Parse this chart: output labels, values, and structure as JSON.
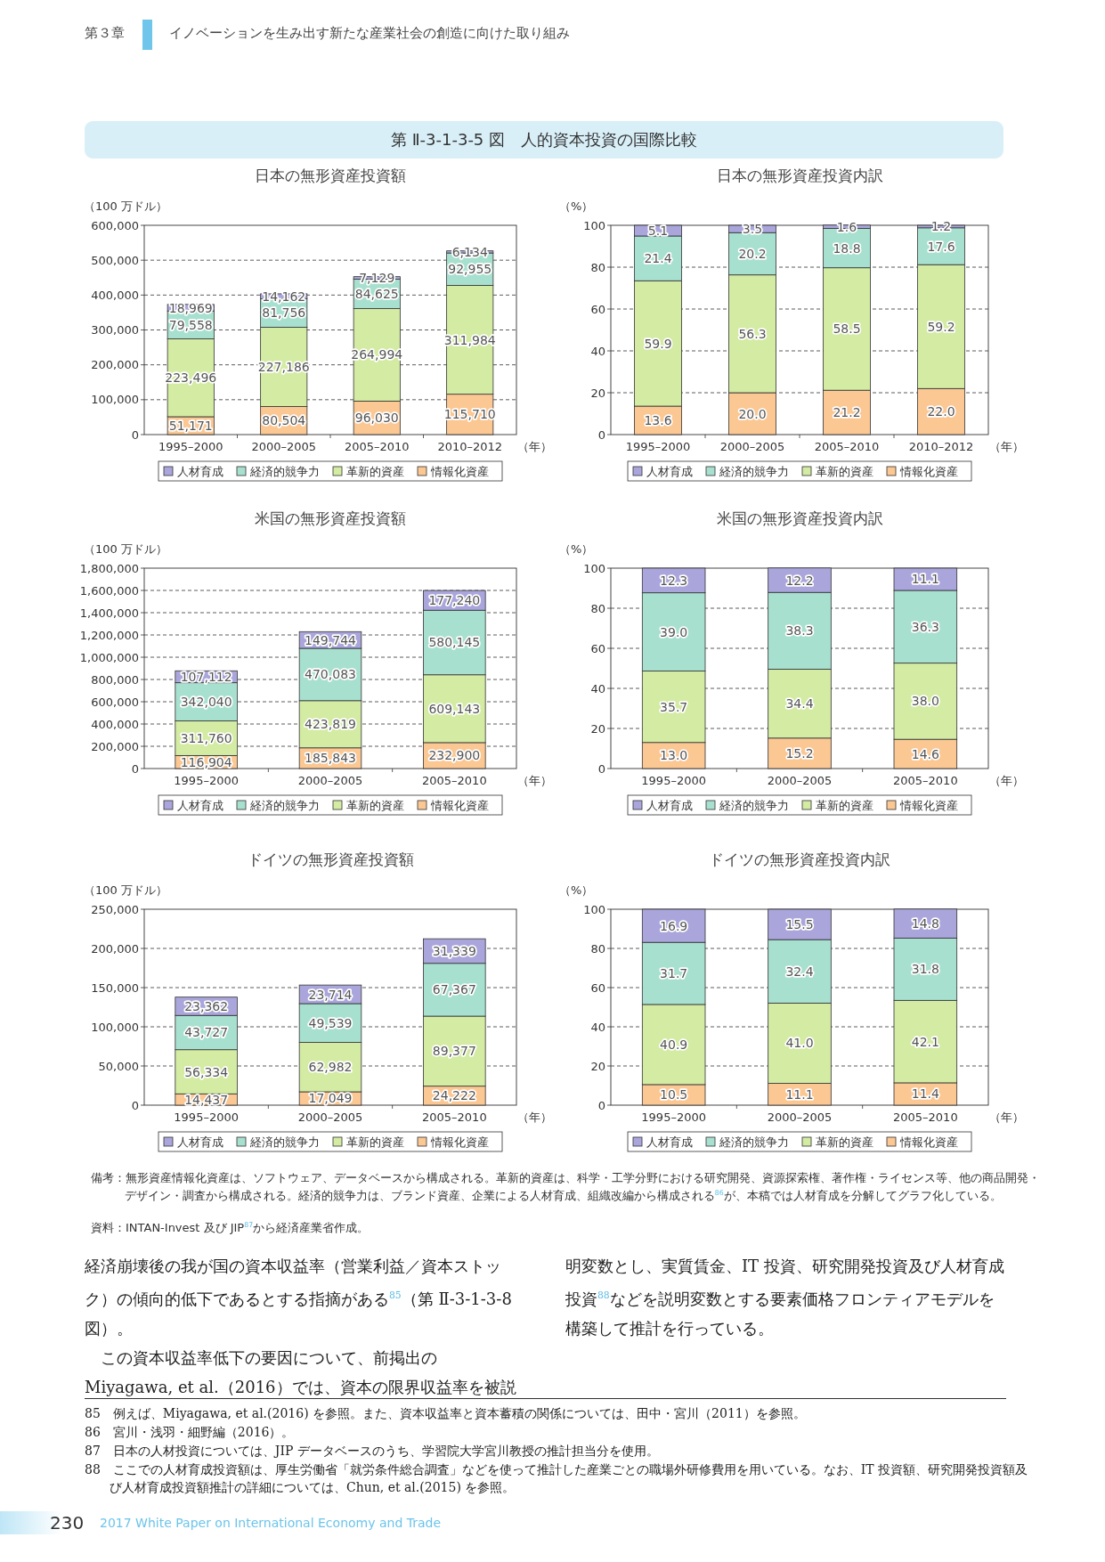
{
  "chart_data": [
    {
      "type": "other",
      "title": "第 Ⅱ-3-1-3-5 図　人的資本投資の国際比較",
      "annotations": [
        "第３章",
        "イノベーションを生み出す新たな産業社会の創造に向けた取り組み"
      ]
    },
    {
      "type": "bar",
      "stacked": true,
      "title": "日本の無形資産投資額",
      "ylabel": "（100 万ドル）",
      "xlabel": "（年）",
      "categories": [
        "1995–2000",
        "2000–2005",
        "2005–2010",
        "2010–2012"
      ],
      "ylim": [
        0,
        600000
      ],
      "yticks": [
        0,
        {
          "value": 100000,
          "label": "100,000"
        },
        {
          "value": 200000,
          "label": "200,000"
        },
        {
          "value": 300000,
          "label": "300,000"
        },
        {
          "value": 400000,
          "label": "400,000"
        },
        {
          "value": 500000,
          "label": "500,000"
        },
        {
          "value": 600000,
          "label": "600,000"
        }
      ],
      "grid": "y",
      "legend": "bottom",
      "series": [
        {
          "name": "情報化資産",
          "color": "#fbc793",
          "values": [
            51171,
            80504,
            96030,
            115710
          ],
          "value_labels": [
            "51,171",
            "80,504",
            "96,030",
            "115,710"
          ]
        },
        {
          "name": "革新的資産",
          "color": "#d3eba3",
          "values": [
            223496,
            227186,
            264994,
            311984
          ],
          "value_labels": [
            "223,496",
            "227,186",
            "264,994",
            "311,984"
          ]
        },
        {
          "name": "経済的競争力",
          "color": "#a8e0cf",
          "values": [
            79558,
            81756,
            84625,
            92955
          ],
          "value_labels": [
            "79,558",
            "81,756",
            "84,625",
            "92,955"
          ]
        },
        {
          "name": "人材育成",
          "color": "#aaa6dc",
          "values": [
            18969,
            14162,
            7129,
            6134
          ],
          "value_labels": [
            "18,969",
            "14,162",
            "7,129",
            "6,134"
          ]
        }
      ]
    },
    {
      "type": "bar",
      "stacked": true,
      "title": "日本の無形資産投資内訳",
      "ylabel": "（%）",
      "xlabel": "（年）",
      "categories": [
        "1995–2000",
        "2000–2005",
        "2005–2010",
        "2010–2012"
      ],
      "ylim": [
        0,
        100
      ],
      "yticks": [
        0,
        20,
        40,
        60,
        80,
        100
      ],
      "grid": "y",
      "legend": "bottom",
      "series": [
        {
          "name": "情報化資産",
          "color": "#fbc793",
          "values": [
            13.6,
            20.0,
            21.2,
            22.0
          ],
          "value_labels": [
            "13.6",
            "20.0",
            "21.2",
            "22.0"
          ]
        },
        {
          "name": "革新的資産",
          "color": "#d3eba3",
          "values": [
            59.9,
            56.3,
            58.5,
            59.2
          ],
          "value_labels": [
            "59.9",
            "56.3",
            "58.5",
            "59.2"
          ]
        },
        {
          "name": "経済的競争力",
          "color": "#a8e0cf",
          "values": [
            21.4,
            20.2,
            18.8,
            17.6
          ],
          "value_labels": [
            "21.4",
            "20.2",
            "18.8",
            "17.6"
          ]
        },
        {
          "name": "人材育成",
          "color": "#aaa6dc",
          "values": [
            5.1,
            3.5,
            1.6,
            1.2
          ],
          "value_labels": [
            "5.1",
            "3.5",
            "1.6",
            "1.2"
          ]
        }
      ]
    },
    {
      "type": "bar",
      "stacked": true,
      "title": "米国の無形資産投資額",
      "ylabel": "（100 万ドル）",
      "xlabel": "（年）",
      "categories": [
        "1995–2000",
        "2000–2005",
        "2005–2010"
      ],
      "ylim": [
        0,
        1800000
      ],
      "yticks": [
        0,
        {
          "value": 200000,
          "label": "200,000"
        },
        {
          "value": 400000,
          "label": "400,000"
        },
        {
          "value": 600000,
          "label": "600,000"
        },
        {
          "value": 800000,
          "label": "800,000"
        },
        {
          "value": 1000000,
          "label": "1,000,000"
        },
        {
          "value": 1200000,
          "label": "1,200,000"
        },
        {
          "value": 1400000,
          "label": "1,400,000"
        },
        {
          "value": 1600000,
          "label": "1,600,000"
        },
        {
          "value": 1800000,
          "label": "1,800,000"
        }
      ],
      "grid": "y",
      "legend": "bottom",
      "series": [
        {
          "name": "情報化資産",
          "color": "#fbc793",
          "values": [
            116904,
            185843,
            232900
          ],
          "value_labels": [
            "116,904",
            "185,843",
            "232,900"
          ]
        },
        {
          "name": "革新的資産",
          "color": "#d3eba3",
          "values": [
            311760,
            423819,
            609143
          ],
          "value_labels": [
            "311,760",
            "423,819",
            "609,143"
          ]
        },
        {
          "name": "経済的競争力",
          "color": "#a8e0cf",
          "values": [
            342040,
            470083,
            580145
          ],
          "value_labels": [
            "342,040",
            "470,083",
            "580,145"
          ]
        },
        {
          "name": "人材育成",
          "color": "#aaa6dc",
          "values": [
            107112,
            149744,
            177240
          ],
          "value_labels": [
            "107,112",
            "149,744",
            "177,240"
          ]
        }
      ]
    },
    {
      "type": "bar",
      "stacked": true,
      "title": "米国の無形資産投資内訳",
      "ylabel": "（%）",
      "xlabel": "（年）",
      "categories": [
        "1995–2000",
        "2000–2005",
        "2005–2010"
      ],
      "ylim": [
        0,
        100
      ],
      "yticks": [
        0,
        20,
        40,
        60,
        80,
        100
      ],
      "grid": "y",
      "legend": "bottom",
      "series": [
        {
          "name": "情報化資産",
          "color": "#fbc793",
          "values": [
            13.0,
            15.2,
            14.6
          ],
          "value_labels": [
            "13.0",
            "15.2",
            "14.6"
          ]
        },
        {
          "name": "革新的資産",
          "color": "#d3eba3",
          "values": [
            35.7,
            34.4,
            38.0
          ],
          "value_labels": [
            "35.7",
            "34.4",
            "38.0"
          ]
        },
        {
          "name": "経済的競争力",
          "color": "#a8e0cf",
          "values": [
            39.0,
            38.3,
            36.3
          ],
          "value_labels": [
            "39.0",
            "38.3",
            "36.3"
          ]
        },
        {
          "name": "人材育成",
          "color": "#aaa6dc",
          "values": [
            12.3,
            12.2,
            11.1
          ],
          "value_labels": [
            "12.3",
            "12.2",
            "11.1"
          ]
        }
      ]
    },
    {
      "type": "bar",
      "stacked": true,
      "title": "ドイツの無形資産投資額",
      "ylabel": "（100 万ドル）",
      "xlabel": "（年）",
      "categories": [
        "1995–2000",
        "2000–2005",
        "2005–2010"
      ],
      "ylim": [
        0,
        250000
      ],
      "yticks": [
        0,
        {
          "value": 50000,
          "label": "50,000"
        },
        {
          "value": 100000,
          "label": "100,000"
        },
        {
          "value": 150000,
          "label": "150,000"
        },
        {
          "value": 200000,
          "label": "200,000"
        },
        {
          "value": 250000,
          "label": "250,000"
        }
      ],
      "grid": "y",
      "legend": "bottom",
      "series": [
        {
          "name": "情報化資産",
          "color": "#fbc793",
          "values": [
            14437,
            17049,
            24222
          ],
          "value_labels": [
            "14,437",
            "17,049",
            "24,222"
          ]
        },
        {
          "name": "革新的資産",
          "color": "#d3eba3",
          "values": [
            56334,
            62982,
            89377
          ],
          "value_labels": [
            "56,334",
            "62,982",
            "89,377"
          ]
        },
        {
          "name": "経済的競争力",
          "color": "#a8e0cf",
          "values": [
            43727,
            49539,
            67367
          ],
          "value_labels": [
            "43,727",
            "49,539",
            "67,367"
          ]
        },
        {
          "name": "人材育成",
          "color": "#aaa6dc",
          "values": [
            23362,
            23714,
            31339
          ],
          "value_labels": [
            "23,362",
            "23,714",
            "31,339"
          ]
        }
      ]
    },
    {
      "type": "bar",
      "stacked": true,
      "title": "ドイツの無形資産投資内訳",
      "ylabel": "（%）",
      "xlabel": "（年）",
      "categories": [
        "1995–2000",
        "2000–2005",
        "2005–2010"
      ],
      "ylim": [
        0,
        100
      ],
      "yticks": [
        0,
        20,
        40,
        60,
        80,
        100
      ],
      "grid": "y",
      "legend": "bottom",
      "series": [
        {
          "name": "情報化資産",
          "color": "#fbc793",
          "values": [
            10.5,
            11.1,
            11.4
          ],
          "value_labels": [
            "10.5",
            "11.1",
            "11.4"
          ]
        },
        {
          "name": "革新的資産",
          "color": "#d3eba3",
          "values": [
            40.9,
            41.0,
            42.1
          ],
          "value_labels": [
            "40.9",
            "41.0",
            "42.1"
          ]
        },
        {
          "name": "経済的競争力",
          "color": "#a8e0cf",
          "values": [
            31.7,
            32.4,
            31.8
          ],
          "value_labels": [
            "31.7",
            "32.4",
            "31.8"
          ]
        },
        {
          "name": "人材育成",
          "color": "#aaa6dc",
          "values": [
            16.9,
            15.5,
            14.8
          ],
          "value_labels": [
            "16.9",
            "15.5",
            "14.8"
          ]
        }
      ]
    },
    {
      "type": "other",
      "annotations": [
        "備考：無形資産情報化資産は、ソフトウェア、データベースから構成される。革新的資産は、科学・工学分野における研究開発、資源探索権、著作権・ライセンス等、他の商品開発・デザイン・調査から構成される。経済的競争力は、ブランド資産、企業による人材育成、組織改編から構成される$^{86}$が、本稿では人材育成を分解してグラフ化している。",
        "資料：INTAN-Invest 及び JIP$^{87}$から経済産業省作成。",
        "経済崩壊後の我が国の資本収益率（営業利益／資本ストック）の傾向的低下であるとする指摘がある$^{85}$（第 Ⅱ-3-1-3-8 図）。",
        "この資本収益率低下の要因について、前掲出の Miyagawa, et al.（2016）では、資本の限界収益率を被説明変数とし、実質賃金、IT 投資、研究開発投資及び人材育成投資$^{88}$などを説明変数とする要素価格フロンティアモデルを構築して推計を行っている。",
        "85　例えば、Miyagawa, et al.(2016) を参照。また、資本収益率と資本蓄積の関係については、田中・宮川（2011）を参照。",
        "86　宮川・浅羽・細野編（2016）。",
        "87　日本の人材投資については、JIP データベースのうち、学習院大学宮川教授の推計担当分を使用。",
        "88　ここでの人材育成投資額は、厚生労働省「就労条件総合調査」などを使って推計した産業ごとの職場外研修費用を用いている。なお、IT 投資額、研究開発投資額及び人材育成投資額推計の詳細については、Chun, et al.(2015) を参照。",
        "230",
        "2017 White Paper on International Economy and Trade"
      ]
    }
  ]
}
